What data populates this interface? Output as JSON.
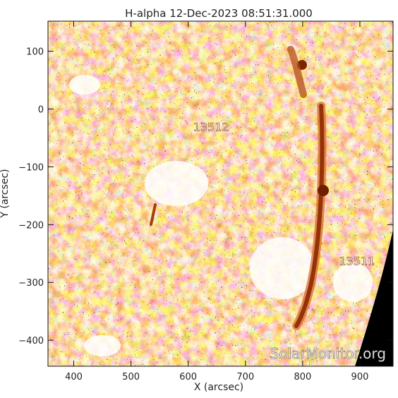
{
  "title": "H-alpha 12-Dec-2023 08:51:31.000",
  "x_axis": {
    "label": "X (arcsec)",
    "range": [
      355,
      958
    ],
    "ticks": [
      400,
      500,
      600,
      700,
      800,
      900
    ],
    "tick_labels": [
      "400",
      "500",
      "600",
      "700",
      "800",
      "900"
    ]
  },
  "y_axis": {
    "label": "Y (arcsec)",
    "range": [
      -445,
      152
    ],
    "ticks": [
      100,
      0,
      -100,
      -200,
      -300,
      -400
    ],
    "tick_labels": [
      "100",
      "0",
      "−100",
      "−200",
      "−300",
      "−400"
    ]
  },
  "active_regions": [
    {
      "label": "13512",
      "x": 640,
      "y": -38
    },
    {
      "label": "13511",
      "x": 895,
      "y": -270
    }
  ],
  "features": {
    "filament_center_x": [
      840,
      835,
      828,
      818,
      805,
      790
    ],
    "filament_center_y": [
      20,
      -140,
      -230,
      -320,
      -390,
      -420
    ]
  },
  "watermark": "SolarMonitor.org",
  "colors": {
    "background": "#ffffff",
    "plasma_light": "#f39a4f",
    "plasma_mid": "#e17228",
    "plasma_dark": "#7c2a03",
    "space": "#000000"
  }
}
